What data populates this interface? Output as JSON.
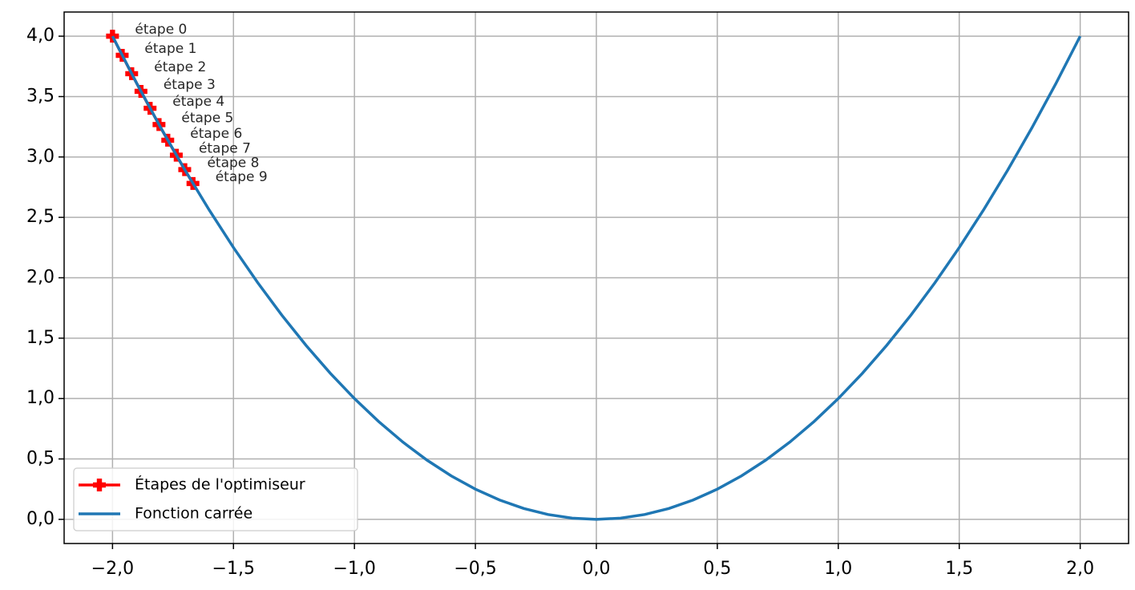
{
  "chart_data": {
    "type": "line",
    "xlim": [
      -2.2,
      2.2
    ],
    "ylim": [
      -0.2,
      4.2
    ],
    "grid": true,
    "legend": "lower left",
    "xticks": [
      {
        "value": -2.0,
        "label": "−2,0"
      },
      {
        "value": -1.5,
        "label": "−1,5"
      },
      {
        "value": -1.0,
        "label": "−1,0"
      },
      {
        "value": -0.5,
        "label": "−0,5"
      },
      {
        "value": 0.0,
        "label": "0,0"
      },
      {
        "value": 0.5,
        "label": "0,5"
      },
      {
        "value": 1.0,
        "label": "1,0"
      },
      {
        "value": 1.5,
        "label": "1,5"
      },
      {
        "value": 2.0,
        "label": "2,0"
      }
    ],
    "yticks": [
      {
        "value": 0.0,
        "label": "0,0"
      },
      {
        "value": 0.5,
        "label": "0,5"
      },
      {
        "value": 1.0,
        "label": "1,0"
      },
      {
        "value": 1.5,
        "label": "1,5"
      },
      {
        "value": 2.0,
        "label": "2,0"
      },
      {
        "value": 2.5,
        "label": "2,5"
      },
      {
        "value": 3.0,
        "label": "3,0"
      },
      {
        "value": 3.5,
        "label": "3,5"
      },
      {
        "value": 4.0,
        "label": "4,0"
      }
    ],
    "series": [
      {
        "name": "Étapes de l'optimiseur",
        "color": "#ff0000",
        "marker": "P",
        "x": [
          -2.0,
          -1.96,
          -1.9208,
          -1.8824,
          -1.8447,
          -1.8078,
          -1.7717,
          -1.7363,
          -1.7015,
          -1.6675
        ],
        "values": [
          4.0,
          3.8416,
          3.6895,
          3.5434,
          3.4031,
          3.2684,
          3.1389,
          3.0146,
          2.8952,
          2.7806
        ],
        "point_labels": [
          "étape 0",
          "étape 1",
          "étape 2",
          "étape 3",
          "étape 4",
          "étape 5",
          "étape 6",
          "étape 7",
          "étape 8",
          "étape 9"
        ]
      },
      {
        "name": "Fonction carrée",
        "color": "#1f77b4",
        "x": [
          -2.0,
          -1.9,
          -1.8,
          -1.7,
          -1.6,
          -1.5,
          -1.4,
          -1.3,
          -1.2,
          -1.1,
          -1.0,
          -0.9,
          -0.8,
          -0.7,
          -0.6,
          -0.5,
          -0.4,
          -0.3,
          -0.2,
          -0.1,
          0.0,
          0.1,
          0.2,
          0.3,
          0.4,
          0.5,
          0.6,
          0.7,
          0.8,
          0.9,
          1.0,
          1.1,
          1.2,
          1.3,
          1.4,
          1.5,
          1.6,
          1.7,
          1.8,
          1.9,
          2.0
        ],
        "values": [
          4.0,
          3.61,
          3.24,
          2.89,
          2.56,
          2.25,
          1.96,
          1.69,
          1.44,
          1.21,
          1.0,
          0.81,
          0.64,
          0.49,
          0.36,
          0.25,
          0.16,
          0.09,
          0.04,
          0.01,
          0.0,
          0.01,
          0.04,
          0.09,
          0.16,
          0.25,
          0.36,
          0.49,
          0.64,
          0.81,
          1.0,
          1.21,
          1.44,
          1.69,
          1.96,
          2.25,
          2.56,
          2.89,
          3.24,
          3.61,
          4.0
        ]
      }
    ]
  }
}
